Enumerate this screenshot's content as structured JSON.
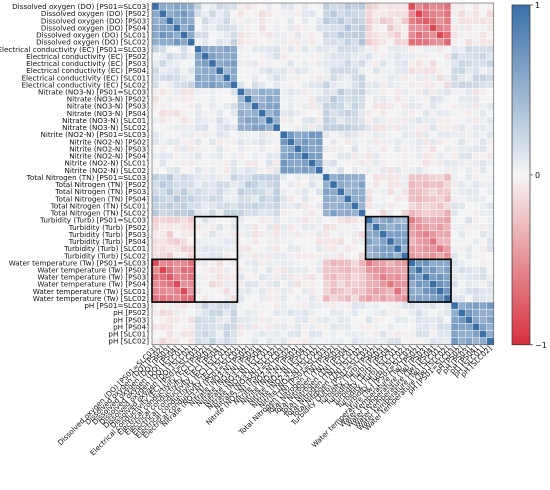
{
  "chart_data": {
    "type": "heatmap",
    "title": "",
    "xlabel": "",
    "ylabel": "",
    "variables": [
      "Dissolved oxygen (DO)",
      "Electrical conductivity (EC)",
      "Nitrate (NO3-N)",
      "Nitrite (NO2-N)",
      "Total Nitrogen (TN)",
      "Turbidity (Turb)",
      "Water temperature (Tw)",
      "pH"
    ],
    "sites": [
      "PS01=SLC03",
      "PS02",
      "PS03",
      "PS04",
      "SLC01",
      "SLC02"
    ],
    "labels": [
      "Dissolved oxygen (DO) [PS01=SLC03]",
      "Dissolved oxygen (DO) [PS02]",
      "Dissolved oxygen (DO) [PS03]",
      "Dissolved oxygen (DO) [PS04]",
      "Dissolved oxygen (DO) [SLC01]",
      "Dissolved oxygen (DO) [SLC02]",
      "Electrical conductivity (EC) [PS01=SLC03]",
      "Electrical conductivity (EC) [PS02]",
      "Electrical conductivity (EC) [PS03]",
      "Electrical conductivity (EC) [PS04]",
      "Electrical conductivity (EC) [SLC01]",
      "Electrical conductivity (EC) [SLC02]",
      "Nitrate (NO3-N) [PS01=SLC03]",
      "Nitrate (NO3-N) [PS02]",
      "Nitrate (NO3-N) [PS03]",
      "Nitrate (NO3-N) [PS04]",
      "Nitrate (NO3-N) [SLC01]",
      "Nitrate (NO3-N) [SLC02]",
      "Nitrite (NO2-N) [PS01=SLC03]",
      "Nitrite (NO2-N) [PS02]",
      "Nitrite (NO2-N) [PS03]",
      "Nitrite (NO2-N) [PS04]",
      "Nitrite (NO2-N) [SLC01]",
      "Nitrite (NO2-N) [SLC02]",
      "Total Nitrogen (TN) [PS01=SLC03]",
      "Total Nitrogen (TN) [PS02]",
      "Total Nitrogen (TN) [PS03]",
      "Total Nitrogen (TN) [PS04]",
      "Total Nitrogen (TN) [SLC01]",
      "Total Nitrogen (TN) [SLC02]",
      "Turbidity (Turb) [PS01=SLC03]",
      "Turbidity (Turb) [PS02]",
      "Turbidity (Turb) [PS03]",
      "Turbidity (Turb) [PS04]",
      "Turbidity (Turb) [SLC01]",
      "Turbidity (Turb) [SLC02]",
      "Water temperature (Tw) [PS01=SLC03]",
      "Water temperature (Tw) [PS02]",
      "Water temperature (Tw) [PS03]",
      "Water temperature (Tw) [PS04]",
      "Water temperature (Tw) [SLC01]",
      "Water temperature (Tw) [SLC02]",
      "pH [PS01=SLC03]",
      "pH [PS02]",
      "pH [PS03]",
      "pH [PS04]",
      "pH [SLC01]",
      "pH [SLC02]"
    ],
    "block_correlations": [
      [
        0.85,
        0.15,
        -0.05,
        0.05,
        0.3,
        -0.15,
        -0.8,
        -0.05
      ],
      [
        0.15,
        0.75,
        0.1,
        0.05,
        0.2,
        0.05,
        -0.05,
        0.2
      ],
      [
        -0.05,
        0.1,
        0.7,
        0.05,
        0.25,
        0.0,
        0.05,
        0.0
      ],
      [
        0.05,
        0.05,
        0.05,
        0.85,
        0.05,
        0.0,
        0.0,
        0.05
      ],
      [
        0.3,
        0.2,
        0.25,
        0.05,
        0.7,
        -0.05,
        -0.3,
        0.05
      ],
      [
        -0.15,
        0.05,
        0.0,
        0.0,
        -0.05,
        0.75,
        -0.55,
        0.05
      ],
      [
        -0.8,
        -0.05,
        0.05,
        0.0,
        -0.3,
        -0.55,
        0.85,
        0.1
      ],
      [
        -0.05,
        0.2,
        0.0,
        0.05,
        0.05,
        0.05,
        0.1,
        0.8
      ]
    ],
    "within_site_multiplier": 1.0,
    "cross_site_multiplier": 0.75,
    "diagonal": 1,
    "highlighted_regions": [
      {
        "rows": "Turbidity (Turb)",
        "cols": "Electrical conductivity (EC)"
      },
      {
        "rows": "Turbidity (Turb)",
        "cols": "Turbidity (Turb)"
      },
      {
        "rows": "Water temperature (Tw)",
        "cols": "Dissolved oxygen (DO)"
      },
      {
        "rows": "Water temperature (Tw)",
        "cols": "Electrical conductivity (EC)"
      },
      {
        "rows": "Water temperature (Tw)",
        "cols": "Water temperature (Tw)"
      }
    ],
    "colorbar": {
      "range": [
        -1,
        1
      ],
      "ticks": [
        1,
        0,
        -1
      ],
      "tick_labels": [
        "1",
        "0",
        "−1"
      ],
      "colors": {
        "low": "#d7303e",
        "mid": "#f5f5f5",
        "high": "#3a6fa8"
      }
    },
    "grid": false,
    "legend": "right"
  }
}
